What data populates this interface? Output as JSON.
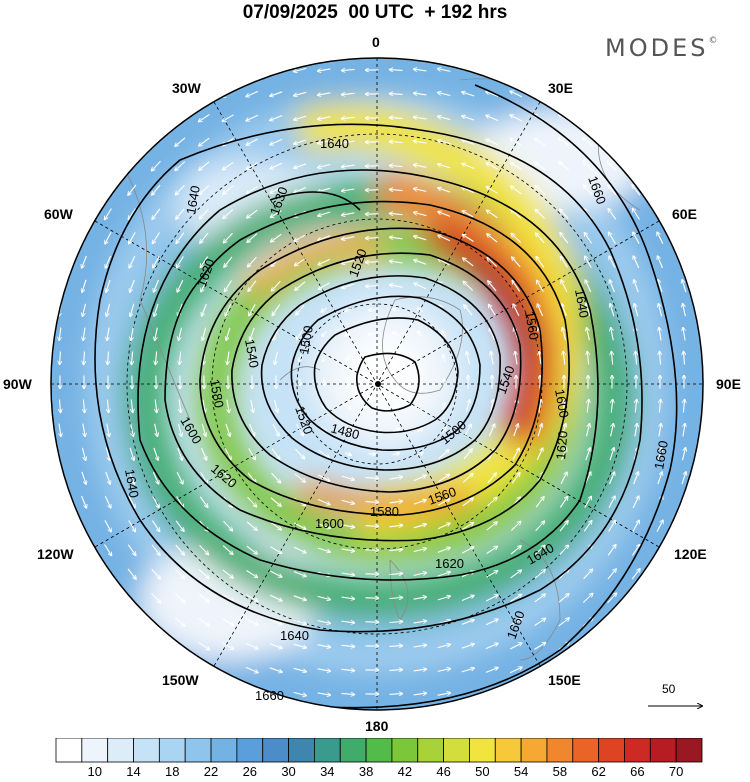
{
  "title": "07/09/2025  00 UTC  + 192 hrs",
  "brand": "MODES",
  "brand_mark": "©",
  "longitude_labels": {
    "lon_0": "0",
    "lon_30e": "30E",
    "lon_60e": "60E",
    "lon_90e": "90E",
    "lon_120e": "120E",
    "lon_150e": "150E",
    "lon_180": "180",
    "lon_150w": "150W",
    "lon_120w": "120W",
    "lon_90w": "90W",
    "lon_60w": "60W",
    "lon_30w": "30W"
  },
  "contour_labels": [
    "1660",
    "1640",
    "1630",
    "1620",
    "1600",
    "1580",
    "1560",
    "1540",
    "1520",
    "1500",
    "1480"
  ],
  "vector_reference": "50",
  "colorbar": {
    "colors": [
      "#ffffff",
      "#eef4fb",
      "#dcecf9",
      "#c6e2f6",
      "#aad5f2",
      "#8fc4ec",
      "#74b2e4",
      "#5a9fdb",
      "#4b8cc9",
      "#3e86ae",
      "#3a9a8e",
      "#3fac6c",
      "#52bb4a",
      "#7cc63a",
      "#a8d23a",
      "#d3de3c",
      "#f2e43e",
      "#f6c83a",
      "#f5a834",
      "#f0862e",
      "#ea6428",
      "#de4424",
      "#cc2a22",
      "#b51d22",
      "#991822"
    ],
    "tick_labels": [
      "10",
      "14",
      "18",
      "22",
      "26",
      "30",
      "34",
      "38",
      "42",
      "46",
      "50",
      "54",
      "58",
      "62",
      "66",
      "70"
    ]
  }
}
